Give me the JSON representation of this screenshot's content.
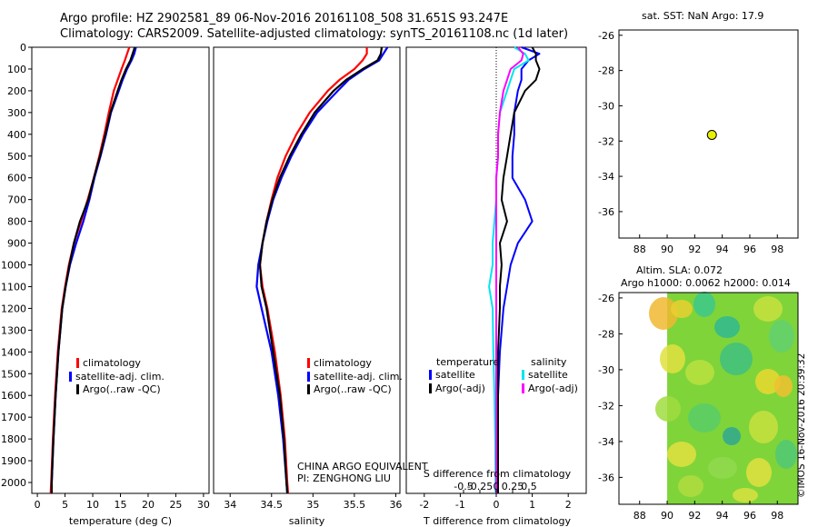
{
  "header": {
    "line1": "Argo profile: HZ 2902581_89 06-Nov-2016 20161108_508 31.651S 93.247E",
    "line2": "Climatology: CARS2009. Satellite-adjusted climatology: synTS_20161108.nc (1d later)"
  },
  "colors": {
    "climatology": "#ff0000",
    "satellite": "#0000ff",
    "argo": "#000000",
    "sal_satellite": "#00e5ee",
    "sal_argo": "#ff00ff",
    "float_marker": "#e8f000"
  },
  "depth_ticks": [
    0,
    100,
    200,
    300,
    400,
    500,
    600,
    700,
    800,
    900,
    1000,
    1100,
    1200,
    1300,
    1400,
    1500,
    1600,
    1700,
    1800,
    1900,
    2000
  ],
  "depth_levels": [
    0,
    30,
    60,
    100,
    150,
    200,
    300,
    400,
    500,
    600,
    700,
    800,
    900,
    1000,
    1100,
    1200,
    1400,
    1600,
    1800,
    2000,
    2050
  ],
  "panels": {
    "temperature": {
      "xlabel": "temperature (deg C)",
      "xticks": [
        0,
        5,
        10,
        15,
        20,
        25,
        30
      ],
      "legend": [
        "climatology",
        "satellite-adj. clim.",
        "Argo(..raw -QC)"
      ]
    },
    "salinity": {
      "xlabel": "salinity",
      "xticks": [
        34,
        34.5,
        35,
        35.5,
        36
      ],
      "xtick_labels": [
        "34",
        "34.5",
        "35",
        "35.5",
        "36"
      ],
      "legend": [
        "climatology",
        "satellite-adj. clim.",
        "Argo(..raw -QC)"
      ],
      "footer1": "CHINA ARGO EQUIVALENT",
      "footer2": "PI: ZENGHONG LIU"
    },
    "difference": {
      "xlabel": "T difference from climatology",
      "top_label": "S difference from climatology",
      "xticks": [
        -2,
        -1,
        0,
        1,
        2
      ],
      "top_ticks": [
        -0.5,
        -0.25,
        0,
        0.25,
        0.5
      ],
      "top_tick_labels": [
        "-0.5",
        "-0.25",
        "0",
        "0.25",
        "0.5"
      ],
      "legend_temp_title": "temperature",
      "legend_sal_title": "salinity",
      "legend_temp": [
        "satellite",
        "Argo(-adj)"
      ],
      "legend_sal": [
        "satellite",
        "Argo(-adj)"
      ]
    }
  },
  "chart_data": [
    {
      "type": "line",
      "title": "",
      "xlabel": "temperature (deg C)",
      "ylabel": "",
      "xlim": [
        -1,
        31
      ],
      "ylim": [
        2050,
        0
      ],
      "y_axis": "depth",
      "series": [
        {
          "name": "climatology",
          "x": [
            16.6,
            16.2,
            15.8,
            15.2,
            14.5,
            13.8,
            12.9,
            12.1,
            11.2,
            10.2,
            9.1,
            7.9,
            6.6,
            5.7,
            5.0,
            4.4,
            3.7,
            3.2,
            2.8,
            2.5,
            2.4
          ]
        },
        {
          "name": "satellite-adj. clim.",
          "x": [
            17.8,
            17.5,
            17.0,
            16.2,
            15.4,
            14.7,
            13.3,
            12.4,
            11.4,
            10.3,
            9.4,
            8.3,
            7.0,
            5.9,
            5.1,
            4.5,
            3.8,
            3.3,
            2.9,
            2.6,
            2.6
          ]
        },
        {
          "name": "Argo(..raw -QC)",
          "x": [
            17.6,
            17.2,
            16.8,
            16.0,
            15.2,
            14.5,
            13.2,
            12.3,
            11.3,
            10.2,
            9.2,
            7.7,
            6.6,
            5.8,
            5.1,
            4.5,
            3.8,
            3.3,
            2.9,
            2.6,
            2.6
          ]
        }
      ]
    },
    {
      "type": "line",
      "title": "",
      "xlabel": "salinity",
      "ylabel": "",
      "xlim": [
        33.8,
        36.05
      ],
      "ylim": [
        2050,
        0
      ],
      "y_axis": "depth",
      "series": [
        {
          "name": "climatology",
          "x": [
            35.65,
            35.65,
            35.6,
            35.5,
            35.32,
            35.18,
            34.96,
            34.8,
            34.67,
            34.57,
            34.5,
            34.44,
            34.39,
            34.36,
            34.39,
            34.45,
            34.54,
            34.61,
            34.66,
            34.69,
            34.7
          ]
        },
        {
          "name": "satellite-adj. clim.",
          "x": [
            35.9,
            35.85,
            35.8,
            35.62,
            35.43,
            35.3,
            35.05,
            34.88,
            34.74,
            34.62,
            34.52,
            34.45,
            34.39,
            34.34,
            34.32,
            34.38,
            34.5,
            34.58,
            34.64,
            34.68,
            34.69
          ]
        },
        {
          "name": "Argo(..raw -QC)",
          "x": [
            35.83,
            35.82,
            35.78,
            35.6,
            35.4,
            35.25,
            35.02,
            34.86,
            34.72,
            34.6,
            34.51,
            34.44,
            34.39,
            34.36,
            34.38,
            34.44,
            34.52,
            34.6,
            34.65,
            34.68,
            34.69
          ]
        }
      ]
    },
    {
      "type": "line",
      "title": "",
      "xlabel": "T difference from climatology",
      "ylabel": "",
      "xlim": [
        -2.5,
        2.5
      ],
      "ylim": [
        2050,
        0
      ],
      "y_axis": "depth",
      "series": [
        {
          "name": "temperature satellite",
          "x": [
            0.7,
            1.2,
            0.9,
            0.7,
            0.7,
            0.6,
            0.5,
            0.5,
            0.45,
            0.45,
            0.8,
            1.0,
            0.6,
            0.4,
            0.3,
            0.2,
            0.1,
            0.05,
            0.05,
            0.05,
            0.05
          ]
        },
        {
          "name": "temperature Argo(-adj)",
          "x": [
            1.0,
            1.1,
            1.1,
            1.2,
            1.1,
            0.8,
            0.5,
            0.4,
            0.3,
            0.2,
            0.15,
            0.3,
            0.1,
            0.15,
            0.1,
            0.1,
            0.05,
            0.05,
            0.05,
            0.05,
            0.05
          ]
        },
        {
          "name": "salinity satellite",
          "x": [
            0.5,
            0.8,
            0.9,
            0.5,
            0.4,
            0.3,
            0.1,
            0.05,
            0.05,
            0.0,
            0.0,
            -0.05,
            -0.1,
            -0.1,
            -0.2,
            -0.1,
            -0.08,
            -0.05,
            -0.03,
            -0.02,
            -0.02
          ]
        },
        {
          "name": "salinity Argo(-adj)",
          "x": [
            0.6,
            0.75,
            0.7,
            0.4,
            0.3,
            0.2,
            0.1,
            0.05,
            0.05,
            0.0,
            0.0,
            0.0,
            0.0,
            0.0,
            0.0,
            0.0,
            0.0,
            0.0,
            0.0,
            0.0,
            0.0
          ]
        }
      ]
    },
    {
      "type": "scatter",
      "title": "sat. SST: NaN Argo: 17.9",
      "xlabel": "",
      "ylabel": "",
      "xlim": [
        86.5,
        99.5
      ],
      "ylim": [
        -37.5,
        -25.7
      ],
      "xticks": [
        88,
        90,
        92,
        94,
        96,
        98
      ],
      "yticks": [
        -26,
        -28,
        -30,
        -32,
        -34,
        -36
      ],
      "series": [
        {
          "x": [
            93.247
          ],
          "y": [
            -31.651
          ]
        }
      ]
    },
    {
      "type": "heatmap",
      "title1": "Altim. SLA: 0.072",
      "title2": "Argo h1000: 0.0062 h2000: 0.014",
      "xlabel": "",
      "ylabel": "",
      "xlim": [
        86.5,
        99.5
      ],
      "ylim": [
        -37.5,
        -25.7
      ],
      "xticks": [
        88,
        90,
        92,
        94,
        96,
        98
      ],
      "yticks": [
        -26,
        -28,
        -30,
        -32,
        -34,
        -36
      ],
      "data_extent_x": [
        90,
        99.5
      ]
    }
  ],
  "side": {
    "sst_title": "sat. SST: NaN Argo: 17.9",
    "sla_title1": "Altim. SLA: 0.072",
    "sla_title2": "Argo h1000: 0.0062 h2000: 0.014",
    "credit": "©IMOS 16-Nov-2016 20:39:32"
  }
}
